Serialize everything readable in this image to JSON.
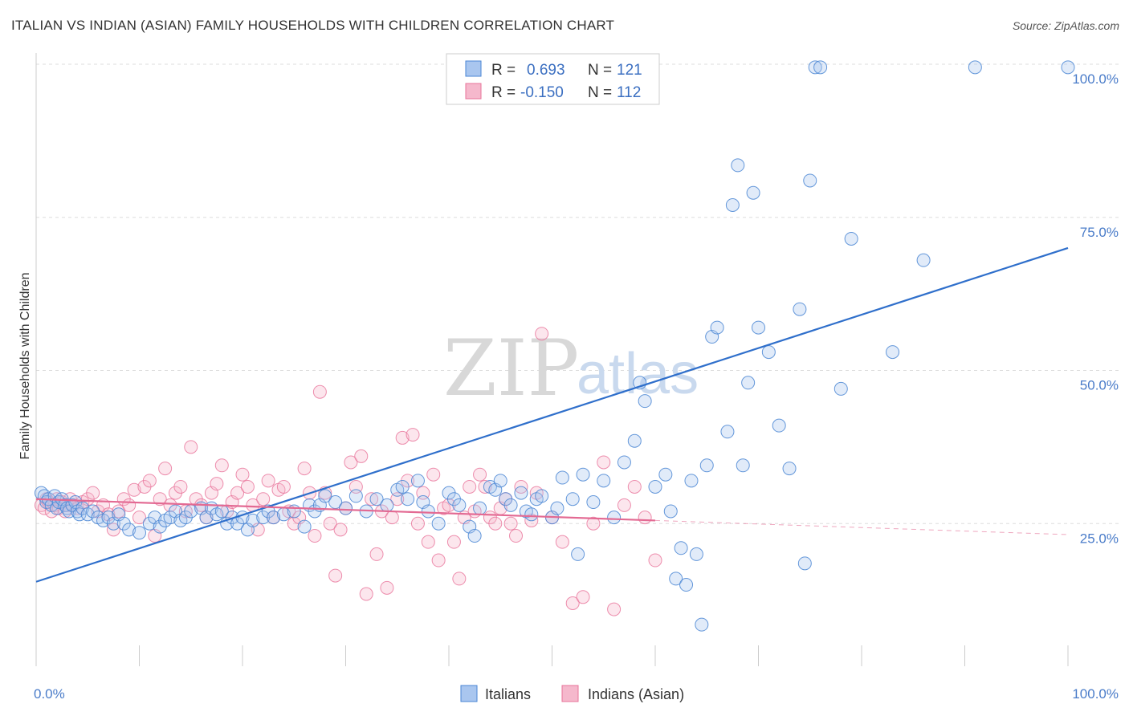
{
  "title": "ITALIAN VS INDIAN (ASIAN) FAMILY HOUSEHOLDS WITH CHILDREN CORRELATION CHART",
  "source": "Source: ZipAtlas.com",
  "watermark": {
    "zip": "ZIP",
    "atlas": "atlas"
  },
  "colors": {
    "blue": "#4a86d4",
    "blue_fill": "#a9c6ef",
    "pink": "#e8739a",
    "pink_fill": "#f5b8cc",
    "blue_line": "#2f6fcb",
    "pink_line": "#e36a93"
  },
  "chart_data": {
    "type": "scatter",
    "title": "ITALIAN VS INDIAN (ASIAN) FAMILY HOUSEHOLDS WITH CHILDREN CORRELATION CHART",
    "xlabel": "",
    "ylabel": "Family Households with Children",
    "xlim": [
      0,
      100
    ],
    "ylim": [
      0,
      103
    ],
    "x_tick_labels": {
      "min": "0.0%",
      "max": "100.0%"
    },
    "y_ticks": [
      {
        "value": 25,
        "label": "25.0%"
      },
      {
        "value": 50,
        "label": "50.0%"
      },
      {
        "value": 75,
        "label": "75.0%"
      },
      {
        "value": 100,
        "label": "100.0%"
      }
    ],
    "legend": {
      "r_label": "R =",
      "n_label": "N =",
      "entries": [
        {
          "series": "Italians",
          "r": "0.693",
          "n": "121"
        },
        {
          "series": "Indians (Asian)",
          "r": "-0.150",
          "n": "112"
        }
      ]
    },
    "series": [
      {
        "name": "Italians",
        "trend": {
          "x0": 0,
          "y0": 15.5,
          "x1": 100,
          "y1": 70
        },
        "points": [
          [
            0.5,
            30
          ],
          [
            0.8,
            29.5
          ],
          [
            1,
            28.5
          ],
          [
            1.2,
            29
          ],
          [
            1.5,
            28
          ],
          [
            1.8,
            29.5
          ],
          [
            2,
            27.5
          ],
          [
            2.2,
            28.5
          ],
          [
            2.5,
            29
          ],
          [
            2.8,
            28
          ],
          [
            3,
            27.5
          ],
          [
            3.2,
            27
          ],
          [
            3.5,
            28
          ],
          [
            3.8,
            28.5
          ],
          [
            4,
            27
          ],
          [
            4.2,
            26.5
          ],
          [
            4.5,
            27.5
          ],
          [
            5,
            26.5
          ],
          [
            5.5,
            27
          ],
          [
            6,
            26
          ],
          [
            6.5,
            25.5
          ],
          [
            7,
            26
          ],
          [
            7.5,
            25
          ],
          [
            8,
            26.5
          ],
          [
            8.5,
            25
          ],
          [
            9,
            24
          ],
          [
            10,
            23.5
          ],
          [
            11,
            25
          ],
          [
            11.5,
            26
          ],
          [
            12,
            24.5
          ],
          [
            12.5,
            25.5
          ],
          [
            13,
            26
          ],
          [
            13.5,
            27
          ],
          [
            14,
            25.5
          ],
          [
            14.5,
            26
          ],
          [
            15,
            27
          ],
          [
            16,
            27.5
          ],
          [
            16.5,
            26
          ],
          [
            17,
            27.5
          ],
          [
            17.5,
            26.5
          ],
          [
            18,
            27
          ],
          [
            18.5,
            25
          ],
          [
            19,
            26
          ],
          [
            19.5,
            25
          ],
          [
            20,
            26
          ],
          [
            20.5,
            24
          ],
          [
            21,
            25.5
          ],
          [
            22,
            26
          ],
          [
            22.5,
            27
          ],
          [
            23,
            26
          ],
          [
            24,
            26.5
          ],
          [
            25,
            27
          ],
          [
            26,
            24.5
          ],
          [
            26.5,
            28
          ],
          [
            27,
            27
          ],
          [
            27.5,
            28
          ],
          [
            28,
            29.5
          ],
          [
            29,
            28.5
          ],
          [
            30,
            27.5
          ],
          [
            31,
            29.5
          ],
          [
            32,
            27
          ],
          [
            33,
            29
          ],
          [
            34,
            28
          ],
          [
            35,
            30.5
          ],
          [
            35.5,
            31
          ],
          [
            36,
            29
          ],
          [
            37,
            32
          ],
          [
            37.5,
            28.5
          ],
          [
            38,
            27
          ],
          [
            39,
            25
          ],
          [
            40,
            30
          ],
          [
            40.5,
            29
          ],
          [
            41,
            28
          ],
          [
            42,
            24.5
          ],
          [
            42.5,
            23
          ],
          [
            43,
            27.5
          ],
          [
            44,
            31
          ],
          [
            44.5,
            30.5
          ],
          [
            45,
            32
          ],
          [
            45.5,
            29
          ],
          [
            46,
            28
          ],
          [
            47,
            30
          ],
          [
            47.5,
            27
          ],
          [
            48,
            26.5
          ],
          [
            48.5,
            29
          ],
          [
            49,
            29.5
          ],
          [
            50,
            26
          ],
          [
            50.5,
            27.5
          ],
          [
            51,
            32.5
          ],
          [
            52,
            29
          ],
          [
            52.5,
            20
          ],
          [
            53,
            33
          ],
          [
            54,
            28.5
          ],
          [
            55,
            32
          ],
          [
            56,
            26
          ],
          [
            57,
            35
          ],
          [
            58,
            38.5
          ],
          [
            58.5,
            48
          ],
          [
            59,
            45
          ],
          [
            60,
            31
          ],
          [
            61,
            33
          ],
          [
            61.5,
            27
          ],
          [
            62,
            16
          ],
          [
            62.5,
            21
          ],
          [
            63,
            15
          ],
          [
            63.5,
            32
          ],
          [
            64,
            20
          ],
          [
            64.5,
            8.5
          ],
          [
            65,
            34.5
          ],
          [
            65.5,
            55.5
          ],
          [
            66,
            57
          ],
          [
            67,
            40
          ],
          [
            67.5,
            77
          ],
          [
            68,
            83.5
          ],
          [
            68.5,
            34.5
          ],
          [
            69,
            48
          ],
          [
            69.5,
            79
          ],
          [
            70,
            57
          ],
          [
            71,
            53
          ],
          [
            72,
            41
          ],
          [
            73,
            34
          ],
          [
            74,
            60
          ],
          [
            74.5,
            18.5
          ],
          [
            75,
            81
          ],
          [
            75.5,
            99.5
          ],
          [
            76,
            99.5
          ],
          [
            78,
            47
          ],
          [
            79,
            71.5
          ],
          [
            83,
            53
          ],
          [
            86,
            68
          ],
          [
            91,
            99.5
          ],
          [
            100,
            99.5
          ]
        ]
      },
      {
        "name": "Indians (Asian)",
        "trend": {
          "x0": 0,
          "y0": 29,
          "x1": 60,
          "y1": 25.5
        },
        "trend_dashed": {
          "x0": 60,
          "y0": 25.5,
          "x1": 100,
          "y1": 23.2
        },
        "points": [
          [
            0.5,
            28
          ],
          [
            0.8,
            27.5
          ],
          [
            1,
            29
          ],
          [
            1.2,
            28.5
          ],
          [
            1.5,
            27
          ],
          [
            1.8,
            28
          ],
          [
            2,
            29
          ],
          [
            2.2,
            27.5
          ],
          [
            2.5,
            28.5
          ],
          [
            2.8,
            27
          ],
          [
            3,
            28
          ],
          [
            3.3,
            29
          ],
          [
            3.6,
            28
          ],
          [
            4,
            27.5
          ],
          [
            4.5,
            28.5
          ],
          [
            5,
            29
          ],
          [
            5.5,
            30
          ],
          [
            6,
            27
          ],
          [
            6.5,
            28
          ],
          [
            7,
            26.5
          ],
          [
            7.5,
            24
          ],
          [
            8,
            27
          ],
          [
            8.5,
            29
          ],
          [
            9,
            28
          ],
          [
            9.5,
            30.5
          ],
          [
            10,
            26
          ],
          [
            10.5,
            31
          ],
          [
            11,
            32
          ],
          [
            11.5,
            23
          ],
          [
            12,
            29
          ],
          [
            12.5,
            34
          ],
          [
            13,
            28
          ],
          [
            13.5,
            30
          ],
          [
            14,
            31
          ],
          [
            14.5,
            27
          ],
          [
            15,
            37.5
          ],
          [
            15.5,
            29
          ],
          [
            16,
            28
          ],
          [
            16.5,
            26
          ],
          [
            17,
            30
          ],
          [
            17.5,
            31.5
          ],
          [
            18,
            34.5
          ],
          [
            18.5,
            27
          ],
          [
            19,
            28.5
          ],
          [
            19.5,
            30
          ],
          [
            20,
            33
          ],
          [
            20.5,
            31
          ],
          [
            21,
            28
          ],
          [
            21.5,
            24
          ],
          [
            22,
            29
          ],
          [
            22.5,
            32
          ],
          [
            23,
            26
          ],
          [
            23.5,
            30.5
          ],
          [
            24,
            31
          ],
          [
            24.5,
            27
          ],
          [
            25,
            25
          ],
          [
            25.5,
            26
          ],
          [
            26,
            34
          ],
          [
            26.5,
            30
          ],
          [
            27,
            23
          ],
          [
            27.5,
            46.5
          ],
          [
            28,
            30
          ],
          [
            28.5,
            25
          ],
          [
            29,
            16.5
          ],
          [
            29.5,
            24
          ],
          [
            30,
            27.5
          ],
          [
            30.5,
            35
          ],
          [
            31,
            31
          ],
          [
            31.5,
            36
          ],
          [
            32,
            13.5
          ],
          [
            32.5,
            29
          ],
          [
            33,
            20
          ],
          [
            33.5,
            27
          ],
          [
            34,
            14.5
          ],
          [
            34.5,
            26
          ],
          [
            35,
            29
          ],
          [
            35.5,
            39
          ],
          [
            36,
            32
          ],
          [
            36.5,
            39.5
          ],
          [
            37,
            25
          ],
          [
            37.5,
            30
          ],
          [
            38,
            22
          ],
          [
            38.5,
            33
          ],
          [
            39,
            19
          ],
          [
            39.5,
            27.5
          ],
          [
            40,
            28
          ],
          [
            40.5,
            22
          ],
          [
            41,
            16
          ],
          [
            41.5,
            26
          ],
          [
            42,
            31
          ],
          [
            42.5,
            27
          ],
          [
            43,
            33
          ],
          [
            43.5,
            31
          ],
          [
            44,
            26
          ],
          [
            44.5,
            25
          ],
          [
            45,
            27.5
          ],
          [
            45.5,
            29
          ],
          [
            46,
            25
          ],
          [
            46.5,
            23
          ],
          [
            47,
            31
          ],
          [
            48,
            25.5
          ],
          [
            48.5,
            30
          ],
          [
            49,
            56
          ],
          [
            50,
            26
          ],
          [
            51,
            22
          ],
          [
            52,
            12
          ],
          [
            53,
            13
          ],
          [
            54,
            25
          ],
          [
            55,
            35
          ],
          [
            56,
            11
          ],
          [
            57,
            28
          ],
          [
            58,
            31
          ],
          [
            59,
            26
          ],
          [
            60,
            19
          ]
        ]
      }
    ]
  },
  "bottom_legend": [
    {
      "label": "Italians"
    },
    {
      "label": "Indians (Asian)"
    }
  ]
}
